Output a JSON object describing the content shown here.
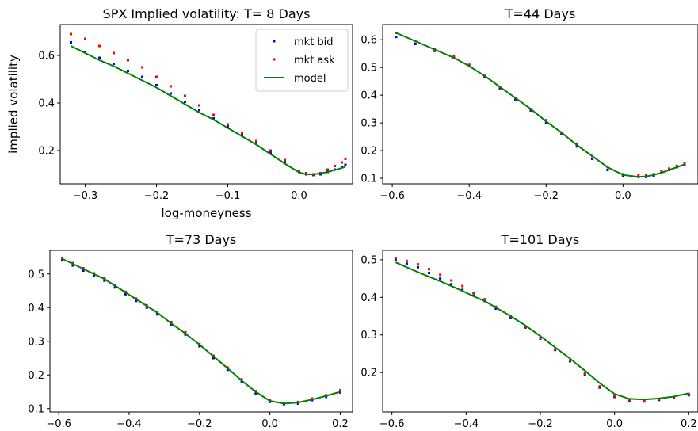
{
  "chart_data": [
    {
      "type": "scatter",
      "title": "SPX Implied volatility: T= 8 Days",
      "xlabel": "log-moneyness",
      "ylabel": "implied volatility",
      "xlim": [
        -0.335,
        0.075
      ],
      "ylim": [
        0.06,
        0.73
      ],
      "xticks": [
        -0.3,
        -0.2,
        -0.1,
        0.0
      ],
      "xtick_labels": [
        "−0.3",
        "−0.2",
        "−0.1",
        "0.0"
      ],
      "yticks": [
        0.2,
        0.4,
        0.6
      ],
      "ytick_labels": [
        "0.2",
        "0.4",
        "0.6"
      ],
      "legend": {
        "position": "top-right",
        "entries": [
          {
            "label": "mkt bid",
            "color": "#0000ff",
            "marker": "square"
          },
          {
            "label": "mkt ask",
            "color": "#ff0000",
            "marker": "square"
          },
          {
            "label": "model",
            "color": "#008000",
            "marker": "line"
          }
        ]
      },
      "series": [
        {
          "name": "mkt bid",
          "style": "markers",
          "color": "#0000ff",
          "x": [
            -0.32,
            -0.3,
            -0.28,
            -0.26,
            -0.24,
            -0.22,
            -0.2,
            -0.18,
            -0.16,
            -0.14,
            -0.12,
            -0.1,
            -0.08,
            -0.06,
            -0.04,
            -0.02,
            0.0,
            0.01,
            0.02,
            0.03,
            0.04,
            0.05,
            0.06,
            0.065
          ],
          "y": [
            0.655,
            0.615,
            0.59,
            0.565,
            0.535,
            0.51,
            0.475,
            0.44,
            0.405,
            0.37,
            0.335,
            0.3,
            0.265,
            0.23,
            0.19,
            0.15,
            0.11,
            0.1,
            0.097,
            0.1,
            0.11,
            0.12,
            0.13,
            0.14
          ]
        },
        {
          "name": "mkt ask",
          "style": "markers",
          "color": "#ff0000",
          "x": [
            -0.32,
            -0.3,
            -0.28,
            -0.26,
            -0.24,
            -0.22,
            -0.2,
            -0.18,
            -0.16,
            -0.14,
            -0.12,
            -0.1,
            -0.08,
            -0.06,
            -0.04,
            -0.02,
            0.0,
            0.01,
            0.02,
            0.03,
            0.04,
            0.05,
            0.06,
            0.065
          ],
          "y": [
            0.69,
            0.67,
            0.64,
            0.61,
            0.58,
            0.55,
            0.51,
            0.47,
            0.43,
            0.39,
            0.35,
            0.31,
            0.275,
            0.24,
            0.2,
            0.16,
            0.115,
            0.105,
            0.1,
            0.105,
            0.12,
            0.135,
            0.15,
            0.165
          ]
        },
        {
          "name": "model",
          "style": "line",
          "color": "#008000",
          "x": [
            -0.32,
            -0.3,
            -0.28,
            -0.26,
            -0.24,
            -0.22,
            -0.2,
            -0.18,
            -0.16,
            -0.14,
            -0.12,
            -0.1,
            -0.08,
            -0.06,
            -0.04,
            -0.02,
            0.0,
            0.01,
            0.02,
            0.03,
            0.04,
            0.05,
            0.06,
            0.065
          ],
          "y": [
            0.64,
            0.61,
            0.58,
            0.555,
            0.525,
            0.495,
            0.465,
            0.43,
            0.395,
            0.36,
            0.33,
            0.295,
            0.26,
            0.225,
            0.185,
            0.145,
            0.108,
            0.1,
            0.1,
            0.104,
            0.11,
            0.118,
            0.127,
            0.132
          ]
        }
      ]
    },
    {
      "type": "scatter",
      "title": "T=44 Days",
      "xlabel": "",
      "ylabel": "",
      "xlim": [
        -0.625,
        0.195
      ],
      "ylim": [
        0.08,
        0.655
      ],
      "xticks": [
        -0.6,
        -0.4,
        -0.2,
        0.0
      ],
      "xtick_labels": [
        "−0.6",
        "−0.4",
        "−0.2",
        "0.0"
      ],
      "yticks": [
        0.1,
        0.2,
        0.3,
        0.4,
        0.5,
        0.6
      ],
      "ytick_labels": [
        "0.1",
        "0.2",
        "0.3",
        "0.4",
        "0.5",
        "0.6"
      ],
      "series": [
        {
          "name": "mkt bid",
          "style": "markers",
          "color": "#0000ff",
          "x": [
            -0.59,
            -0.54,
            -0.49,
            -0.44,
            -0.4,
            -0.36,
            -0.32,
            -0.28,
            -0.24,
            -0.2,
            -0.16,
            -0.12,
            -0.08,
            -0.04,
            0.0,
            0.04,
            0.06,
            0.08,
            0.1,
            0.12,
            0.14,
            0.16
          ],
          "y": [
            0.61,
            0.585,
            0.56,
            0.535,
            0.505,
            0.465,
            0.425,
            0.385,
            0.345,
            0.3,
            0.26,
            0.215,
            0.17,
            0.13,
            0.11,
            0.105,
            0.105,
            0.11,
            0.12,
            0.13,
            0.14,
            0.15
          ]
        },
        {
          "name": "mkt ask",
          "style": "markers",
          "color": "#ff0000",
          "x": [
            -0.59,
            -0.54,
            -0.49,
            -0.44,
            -0.4,
            -0.36,
            -0.32,
            -0.28,
            -0.24,
            -0.2,
            -0.16,
            -0.12,
            -0.08,
            -0.04,
            0.0,
            0.04,
            0.06,
            0.08,
            0.1,
            0.12,
            0.14,
            0.16
          ],
          "y": [
            0.625,
            0.595,
            0.565,
            0.54,
            0.51,
            0.47,
            0.43,
            0.39,
            0.35,
            0.31,
            0.265,
            0.225,
            0.18,
            0.14,
            0.115,
            0.11,
            0.11,
            0.115,
            0.125,
            0.135,
            0.145,
            0.155
          ]
        },
        {
          "name": "model",
          "style": "line",
          "color": "#008000",
          "x": [
            -0.59,
            -0.54,
            -0.49,
            -0.44,
            -0.4,
            -0.36,
            -0.32,
            -0.28,
            -0.24,
            -0.2,
            -0.16,
            -0.12,
            -0.08,
            -0.04,
            0.0,
            0.04,
            0.06,
            0.08,
            0.1,
            0.12,
            0.14,
            0.16
          ],
          "y": [
            0.625,
            0.595,
            0.565,
            0.535,
            0.505,
            0.47,
            0.43,
            0.39,
            0.35,
            0.305,
            0.265,
            0.22,
            0.18,
            0.14,
            0.112,
            0.105,
            0.107,
            0.112,
            0.12,
            0.13,
            0.14,
            0.15
          ]
        }
      ]
    },
    {
      "type": "scatter",
      "title": "T=73 Days",
      "xlabel": "",
      "ylabel": "",
      "xlim": [
        -0.625,
        0.235
      ],
      "ylim": [
        0.09,
        0.57
      ],
      "xticks": [
        -0.6,
        -0.4,
        -0.2,
        0.0,
        0.2
      ],
      "xtick_labels": [
        "−0.6",
        "−0.4",
        "−0.2",
        "0.0",
        "0.2"
      ],
      "yticks": [
        0.1,
        0.2,
        0.3,
        0.4,
        0.5
      ],
      "ytick_labels": [
        "0.1",
        "0.2",
        "0.3",
        "0.4",
        "0.5"
      ],
      "series": [
        {
          "name": "mkt bid",
          "style": "markers",
          "color": "#0000ff",
          "x": [
            -0.59,
            -0.56,
            -0.53,
            -0.5,
            -0.47,
            -0.44,
            -0.41,
            -0.38,
            -0.35,
            -0.32,
            -0.28,
            -0.24,
            -0.2,
            -0.16,
            -0.12,
            -0.08,
            -0.04,
            0.0,
            0.04,
            0.08,
            0.12,
            0.16,
            0.2
          ],
          "y": [
            0.54,
            0.525,
            0.51,
            0.495,
            0.48,
            0.46,
            0.44,
            0.42,
            0.4,
            0.38,
            0.35,
            0.32,
            0.285,
            0.25,
            0.215,
            0.18,
            0.145,
            0.12,
            0.113,
            0.115,
            0.125,
            0.135,
            0.148
          ]
        },
        {
          "name": "mkt ask",
          "style": "markers",
          "color": "#ff0000",
          "x": [
            -0.59,
            -0.56,
            -0.53,
            -0.5,
            -0.47,
            -0.44,
            -0.41,
            -0.38,
            -0.35,
            -0.32,
            -0.28,
            -0.24,
            -0.2,
            -0.16,
            -0.12,
            -0.08,
            -0.04,
            0.0,
            0.04,
            0.08,
            0.12,
            0.16,
            0.2
          ],
          "y": [
            0.547,
            0.532,
            0.517,
            0.502,
            0.487,
            0.467,
            0.447,
            0.427,
            0.407,
            0.387,
            0.357,
            0.327,
            0.292,
            0.257,
            0.222,
            0.187,
            0.152,
            0.125,
            0.117,
            0.12,
            0.13,
            0.14,
            0.155
          ]
        },
        {
          "name": "model",
          "style": "line",
          "color": "#008000",
          "x": [
            -0.59,
            -0.56,
            -0.53,
            -0.5,
            -0.47,
            -0.44,
            -0.41,
            -0.38,
            -0.35,
            -0.32,
            -0.28,
            -0.24,
            -0.2,
            -0.16,
            -0.12,
            -0.08,
            -0.04,
            0.0,
            0.04,
            0.08,
            0.12,
            0.16,
            0.2
          ],
          "y": [
            0.545,
            0.53,
            0.515,
            0.5,
            0.485,
            0.465,
            0.445,
            0.425,
            0.405,
            0.385,
            0.353,
            0.323,
            0.29,
            0.255,
            0.22,
            0.183,
            0.15,
            0.123,
            0.115,
            0.118,
            0.127,
            0.138,
            0.15
          ]
        }
      ]
    },
    {
      "type": "scatter",
      "title": "T=101 Days",
      "xlabel": "",
      "ylabel": "",
      "xlim": [
        -0.625,
        0.225
      ],
      "ylim": [
        0.095,
        0.525
      ],
      "xticks": [
        -0.6,
        -0.4,
        -0.2,
        0.0,
        0.2
      ],
      "xtick_labels": [
        "−0.6",
        "−0.4",
        "−0.2",
        "0.0",
        "0.2"
      ],
      "yticks": [
        0.2,
        0.3,
        0.4,
        0.5
      ],
      "ytick_labels": [
        "0.2",
        "0.3",
        "0.4",
        "0.5"
      ],
      "series": [
        {
          "name": "mkt bid",
          "style": "markers",
          "color": "#0000ff",
          "x": [
            -0.59,
            -0.56,
            -0.53,
            -0.5,
            -0.47,
            -0.44,
            -0.41,
            -0.38,
            -0.35,
            -0.32,
            -0.28,
            -0.24,
            -0.2,
            -0.16,
            -0.12,
            -0.08,
            -0.04,
            0.0,
            0.04,
            0.08,
            0.12,
            0.16,
            0.2
          ],
          "y": [
            0.5,
            0.49,
            0.48,
            0.465,
            0.45,
            0.435,
            0.42,
            0.405,
            0.39,
            0.37,
            0.345,
            0.32,
            0.29,
            0.26,
            0.23,
            0.195,
            0.16,
            0.135,
            0.125,
            0.123,
            0.127,
            0.132,
            0.14
          ]
        },
        {
          "name": "mkt ask",
          "style": "markers",
          "color": "#ff0000",
          "x": [
            -0.59,
            -0.56,
            -0.53,
            -0.5,
            -0.47,
            -0.44,
            -0.41,
            -0.38,
            -0.35,
            -0.32,
            -0.28,
            -0.24,
            -0.2,
            -0.16,
            -0.12,
            -0.08,
            -0.04,
            0.0,
            0.04,
            0.08,
            0.12,
            0.16,
            0.2
          ],
          "y": [
            0.505,
            0.497,
            0.488,
            0.475,
            0.46,
            0.445,
            0.43,
            0.412,
            0.395,
            0.375,
            0.35,
            0.322,
            0.292,
            0.262,
            0.232,
            0.198,
            0.163,
            0.137,
            0.127,
            0.125,
            0.13,
            0.135,
            0.143
          ]
        },
        {
          "name": "model",
          "style": "line",
          "color": "#008000",
          "x": [
            -0.59,
            -0.56,
            -0.53,
            -0.5,
            -0.47,
            -0.44,
            -0.41,
            -0.38,
            -0.35,
            -0.32,
            -0.28,
            -0.24,
            -0.2,
            -0.16,
            -0.12,
            -0.08,
            -0.04,
            0.0,
            0.04,
            0.08,
            0.12,
            0.16,
            0.2
          ],
          "y": [
            0.493,
            0.48,
            0.467,
            0.455,
            0.443,
            0.43,
            0.417,
            0.403,
            0.39,
            0.373,
            0.35,
            0.325,
            0.297,
            0.267,
            0.237,
            0.205,
            0.172,
            0.143,
            0.13,
            0.128,
            0.131,
            0.136,
            0.145
          ]
        }
      ]
    }
  ]
}
